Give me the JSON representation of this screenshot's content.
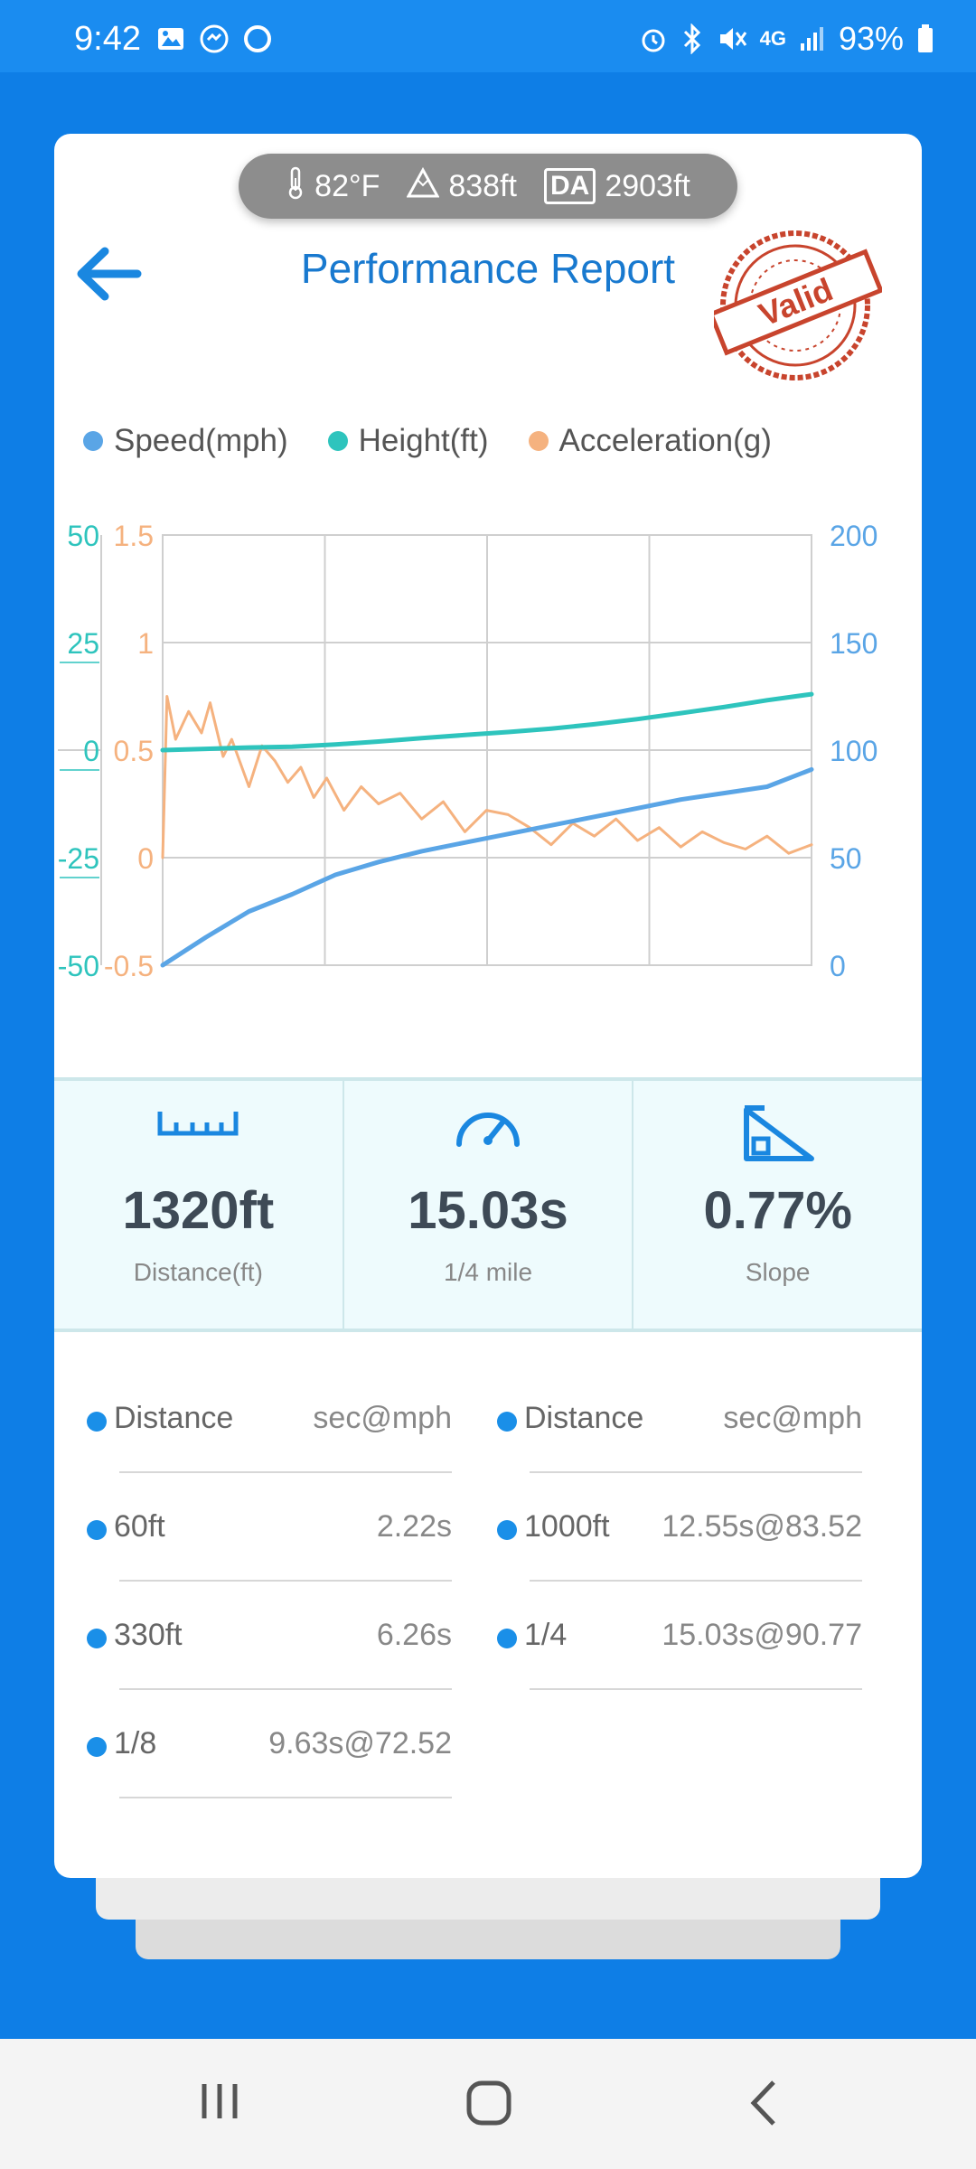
{
  "status_bar": {
    "time": "9:42",
    "battery": "93%",
    "network": "4G",
    "left_icons": [
      "image-icon",
      "messenger-icon",
      "circle-icon"
    ],
    "right_icons": [
      "alarm-icon",
      "bluetooth-icon",
      "mute-icon",
      "signal-icon",
      "battery-icon"
    ]
  },
  "env": {
    "temperature": "82°F",
    "altitude": "838ft",
    "da_label": "DA",
    "density_altitude": "2903ft"
  },
  "header": {
    "title": "Performance Report",
    "stamp_text": "Valid"
  },
  "legend": [
    {
      "label": "Speed(mph)",
      "color": "#5aa5e6"
    },
    {
      "label": "Height(ft)",
      "color": "#2ec4bd"
    },
    {
      "label": "Acceleration(g)",
      "color": "#f5b27f"
    }
  ],
  "chart_data": {
    "type": "line",
    "x_range": [
      0,
      15.03
    ],
    "grid": true,
    "axes": {
      "height": {
        "ticks": [
          "50",
          "25",
          "0",
          "-25",
          "-50"
        ],
        "range": [
          -50,
          50
        ],
        "color": "#2ec4bd"
      },
      "acceleration": {
        "ticks": [
          "1.5",
          "1",
          "0.5",
          "0",
          "-0.5"
        ],
        "range": [
          -0.5,
          1.5
        ],
        "color": "#f5b27f"
      },
      "speed": {
        "ticks": [
          "200",
          "150",
          "100",
          "50",
          "0"
        ],
        "range": [
          0,
          200
        ],
        "color": "#5aa5e6"
      }
    },
    "series": [
      {
        "name": "Speed(mph)",
        "axis": "speed",
        "x": [
          0,
          1,
          2,
          3,
          4,
          5,
          6,
          7,
          8,
          9,
          10,
          11,
          12,
          13,
          14,
          15.03
        ],
        "y": [
          0,
          13,
          25,
          33,
          42,
          48,
          53,
          57,
          61,
          65,
          69,
          73,
          77,
          80,
          83,
          91
        ]
      },
      {
        "name": "Height(ft)",
        "axis": "height",
        "x": [
          0,
          1,
          2,
          3,
          4,
          5,
          6,
          7,
          8,
          9,
          10,
          11,
          12,
          13,
          14,
          15.03
        ],
        "y": [
          0,
          0.3,
          0.6,
          0.8,
          1.3,
          2,
          2.8,
          3.5,
          4.2,
          5,
          6,
          7.2,
          8.6,
          10,
          11.6,
          13
        ]
      },
      {
        "name": "Acceleration(g)",
        "axis": "acceleration",
        "x": [
          0,
          0.1,
          0.3,
          0.6,
          0.9,
          1.1,
          1.4,
          1.6,
          2.0,
          2.3,
          2.6,
          2.9,
          3.2,
          3.5,
          3.8,
          4.2,
          4.6,
          5.0,
          5.5,
          6.0,
          6.5,
          7.0,
          7.5,
          8.0,
          8.5,
          9.0,
          9.5,
          10.0,
          10.5,
          11.0,
          11.5,
          12.0,
          12.5,
          13.0,
          13.5,
          14.0,
          14.5,
          15.03
        ],
        "y": [
          0,
          0.75,
          0.55,
          0.68,
          0.58,
          0.72,
          0.47,
          0.55,
          0.33,
          0.52,
          0.45,
          0.35,
          0.42,
          0.28,
          0.37,
          0.22,
          0.33,
          0.25,
          0.3,
          0.18,
          0.26,
          0.12,
          0.22,
          0.2,
          0.14,
          0.06,
          0.16,
          0.1,
          0.18,
          0.08,
          0.14,
          0.05,
          0.12,
          0.07,
          0.04,
          0.1,
          0.02,
          0.06
        ]
      }
    ]
  },
  "stats": [
    {
      "icon": "ruler-icon",
      "value": "1320ft",
      "label": "Distance(ft)"
    },
    {
      "icon": "speedometer-icon",
      "value": "15.03s",
      "label": "1/4 mile"
    },
    {
      "icon": "slope-icon",
      "value": "0.77%",
      "label": "Slope"
    }
  ],
  "splits": {
    "headers": [
      {
        "distance": "Distance",
        "time": "sec@mph"
      },
      {
        "distance": "Distance",
        "time": "sec@mph"
      }
    ],
    "left": [
      {
        "distance": "60ft",
        "time": "2.22s"
      },
      {
        "distance": "330ft",
        "time": "6.26s"
      },
      {
        "distance": "1/8",
        "time": "9.63s@72.52"
      }
    ],
    "right": [
      {
        "distance": "1000ft",
        "time": "12.55s@83.52"
      },
      {
        "distance": "1/4",
        "time": "15.03s@90.77"
      }
    ]
  },
  "nav": [
    "recent-apps-icon",
    "home-icon",
    "back-icon"
  ]
}
